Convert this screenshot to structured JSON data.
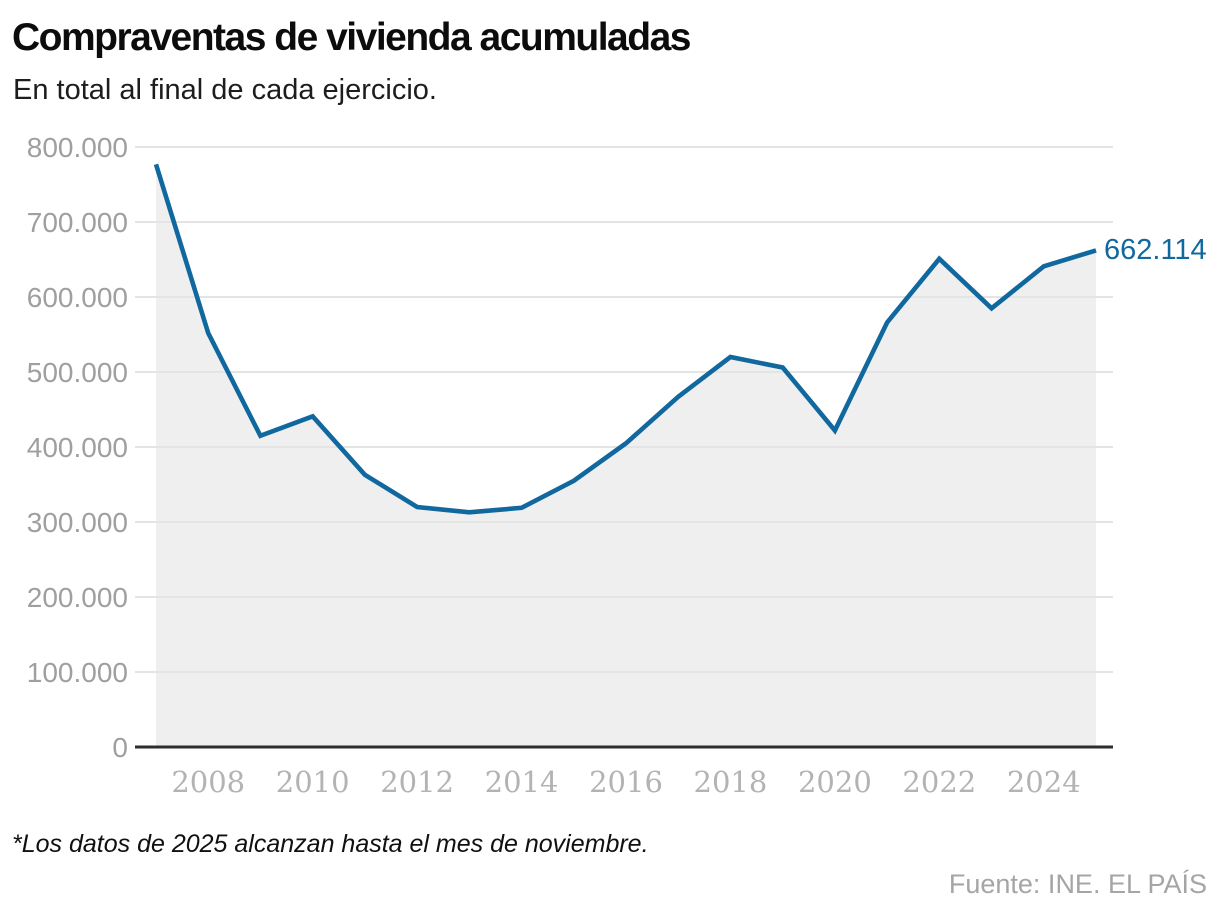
{
  "header": {
    "title": "Compraventas de vivienda acumuladas",
    "subtitle": "En total al final de cada ejercicio."
  },
  "footer": {
    "note": "*Los datos de 2025 alcanzan hasta el mes de noviembre.",
    "source": "Fuente: INE. EL PAÍS"
  },
  "chart_data": {
    "type": "area",
    "title": "Compraventas de vivienda acumuladas",
    "subtitle": "En total al final de cada ejercicio.",
    "x": [
      2007,
      2008,
      2009,
      2010,
      2011,
      2012,
      2013,
      2014,
      2015,
      2016,
      2017,
      2018,
      2019,
      2020,
      2021,
      2022,
      2023,
      2024,
      2025
    ],
    "values": [
      777000,
      552000,
      415000,
      441000,
      363000,
      320000,
      313000,
      319000,
      355000,
      405000,
      467000,
      520000,
      506000,
      422000,
      566000,
      651000,
      585000,
      641000,
      662114
    ],
    "series_name": "Compraventas de vivienda acumuladas",
    "end_label": "662.114",
    "end_value": 662114,
    "xlim": [
      2007,
      2025
    ],
    "ylim": [
      0,
      800000
    ],
    "grid": true,
    "legend_position": "none",
    "y_tick_values": [
      0,
      100000,
      200000,
      300000,
      400000,
      500000,
      600000,
      700000,
      800000
    ],
    "y_tick_labels": [
      "0",
      "100.000",
      "200.000",
      "300.000",
      "400.000",
      "500.000",
      "600.000",
      "700.000",
      "800.000"
    ],
    "x_tick_values": [
      2008,
      2010,
      2012,
      2014,
      2016,
      2018,
      2020,
      2022,
      2024
    ],
    "x_tick_labels": [
      "2008",
      "2010",
      "2012",
      "2014",
      "2016",
      "2018",
      "2020",
      "2022",
      "2024"
    ],
    "colors": {
      "line": "#11689e",
      "end_label": "#11689e",
      "area_fill": "#efefef",
      "gridline": "#e4e4e4",
      "axis_line": "#2e2e2e",
      "y_tick_text": "#9f9f9f",
      "x_tick_text": "#b3b3b3"
    }
  }
}
